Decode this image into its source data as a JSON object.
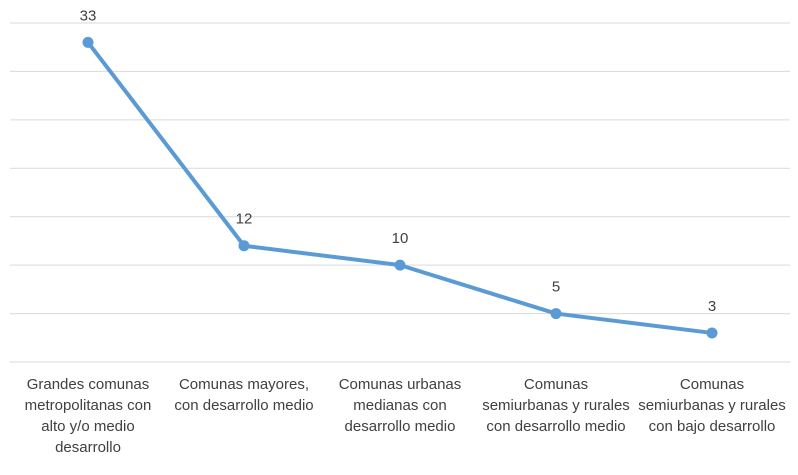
{
  "chart_data": {
    "type": "line",
    "categories": [
      "Grandes comunas metropolitanas con alto y/o medio desarrollo",
      "Comunas mayores, con desarrollo medio",
      "Comunas urbanas medianas con desarrollo medio",
      "Comunas semiurbanas y rurales con desarrollo medio",
      "Comunas semiurbanas y rurales con bajo desarrollo"
    ],
    "series": [
      {
        "color": "#5b9bd5",
        "values": [
          33,
          12,
          10,
          5,
          3
        ]
      }
    ],
    "ylim": [
      0,
      35
    ],
    "yticks": [
      0,
      5,
      10,
      15,
      20,
      25,
      30,
      35
    ],
    "grid": true
  }
}
